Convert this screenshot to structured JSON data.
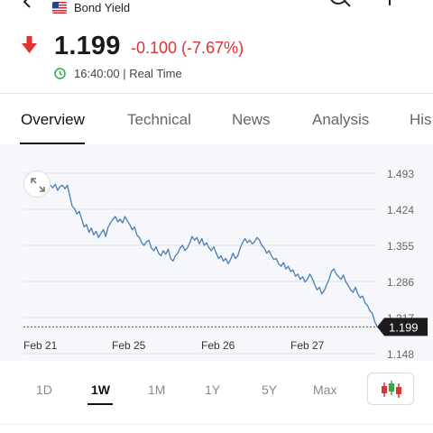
{
  "header": {
    "title": "Bond Yield"
  },
  "quote": {
    "price": "1.199",
    "change": "-0.100 (-7.67%)",
    "time": "16:40:00 | Real Time",
    "direction": "down",
    "down_color": "#e03232"
  },
  "tabs": [
    {
      "label": "Overview",
      "active": true
    },
    {
      "label": "Technical",
      "active": false
    },
    {
      "label": "News",
      "active": false
    },
    {
      "label": "Analysis",
      "active": false
    },
    {
      "label": "His",
      "active": false
    }
  ],
  "periods": [
    {
      "label": "1D",
      "active": false
    },
    {
      "label": "1W",
      "active": true
    },
    {
      "label": "1M",
      "active": false
    },
    {
      "label": "1Y",
      "active": false
    },
    {
      "label": "5Y",
      "active": false
    },
    {
      "label": "Max",
      "active": false
    }
  ],
  "chart_data": {
    "type": "line",
    "line_color": "#4a7db5",
    "current_value": 1.199,
    "current_label": "1.199",
    "ylim": [
      1.148,
      1.493
    ],
    "y_ticks": [
      "1.493",
      "1.424",
      "1.355",
      "1.286",
      "1.217",
      "1.148"
    ],
    "x_tick_labels": [
      "Feb 21",
      "Feb 25",
      "Feb 26",
      "Feb 27"
    ],
    "grid": true,
    "series": [
      {
        "values": [
          1.47,
          1.465,
          1.472,
          1.46,
          1.468,
          1.47,
          1.463,
          1.47,
          1.45,
          1.43,
          1.425,
          1.415,
          1.42,
          1.405,
          1.39,
          1.395,
          1.38,
          1.388,
          1.375,
          1.382,
          1.37,
          1.378,
          1.385,
          1.372,
          1.39,
          1.398,
          1.405,
          1.41,
          1.4,
          1.405,
          1.398,
          1.41,
          1.402,
          1.395,
          1.385,
          1.39,
          1.375,
          1.37,
          1.36,
          1.355,
          1.362,
          1.365,
          1.35,
          1.345,
          1.352,
          1.34,
          1.335,
          1.345,
          1.338,
          1.348,
          1.33,
          1.325,
          1.335,
          1.34,
          1.35,
          1.355,
          1.345,
          1.35,
          1.36,
          1.372,
          1.365,
          1.37,
          1.358,
          1.368,
          1.355,
          1.36,
          1.35,
          1.345,
          1.352,
          1.34,
          1.33,
          1.335,
          1.325,
          1.33,
          1.32,
          1.328,
          1.34,
          1.33,
          1.335,
          1.35,
          1.36,
          1.368,
          1.36,
          1.365,
          1.358,
          1.362,
          1.37,
          1.365,
          1.355,
          1.35,
          1.34,
          1.345,
          1.335,
          1.328,
          1.33,
          1.32,
          1.315,
          1.322,
          1.31,
          1.315,
          1.305,
          1.308,
          1.296,
          1.3,
          1.29,
          1.295,
          1.285,
          1.29,
          1.3,
          1.292,
          1.28,
          1.27,
          1.275,
          1.262,
          1.268,
          1.28,
          1.29,
          1.305,
          1.31,
          1.3,
          1.295,
          1.29,
          1.298,
          1.285,
          1.278,
          1.27,
          1.265,
          1.275,
          1.262,
          1.255,
          1.258,
          1.245,
          1.24,
          1.23,
          1.225,
          1.21,
          1.199
        ]
      }
    ]
  }
}
